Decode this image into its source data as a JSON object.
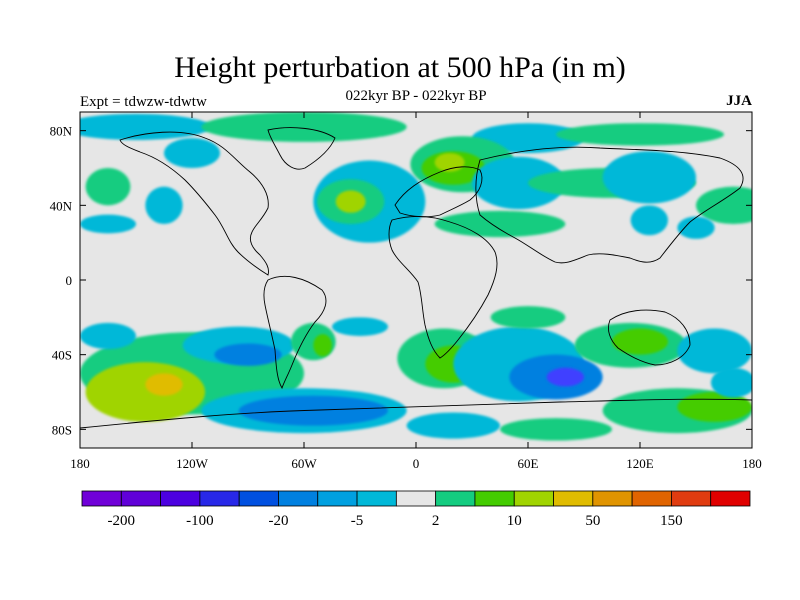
{
  "header": {
    "title": "Height perturbation at 500 hPa (in m)",
    "experiment": "Expt = tdwzw-tdwtw",
    "period": "022kyr BP - 022kyr BP",
    "season": "JJA"
  },
  "map": {
    "lon_range": [
      -180,
      180
    ],
    "lat_range": [
      -90,
      90
    ],
    "lat_ticks": [
      {
        "value": 80,
        "label": "80N"
      },
      {
        "value": 40,
        "label": "40N"
      },
      {
        "value": 0,
        "label": "0"
      },
      {
        "value": -40,
        "label": "40S"
      },
      {
        "value": -80,
        "label": "80S"
      }
    ],
    "lon_ticks": [
      {
        "value": -180,
        "label": "180"
      },
      {
        "value": -120,
        "label": "120W"
      },
      {
        "value": -60,
        "label": "60W"
      },
      {
        "value": 0,
        "label": "0"
      },
      {
        "value": 60,
        "label": "60E"
      },
      {
        "value": 120,
        "label": "120E"
      },
      {
        "value": 180,
        "label": "180"
      }
    ],
    "background_color": "#e6e6e6",
    "contour_blobs": [
      {
        "lon": -150,
        "lat": 82,
        "rx": 40,
        "ry": 7,
        "color": "#00b8d8"
      },
      {
        "lon": -60,
        "lat": 82,
        "rx": 55,
        "ry": 8,
        "color": "#14cc80"
      },
      {
        "lon": 60,
        "lat": 76,
        "rx": 30,
        "ry": 8,
        "color": "#00b8d8"
      },
      {
        "lon": 120,
        "lat": 78,
        "rx": 45,
        "ry": 6,
        "color": "#14cc80"
      },
      {
        "lon": -120,
        "lat": 68,
        "rx": 15,
        "ry": 8,
        "color": "#00b8d8"
      },
      {
        "lon": -25,
        "lat": 42,
        "rx": 30,
        "ry": 22,
        "color": "#00b8d8"
      },
      {
        "lon": -35,
        "lat": 42,
        "rx": 18,
        "ry": 12,
        "color": "#14cc80"
      },
      {
        "lon": -35,
        "lat": 42,
        "rx": 8,
        "ry": 6,
        "color": "#a0d400"
      },
      {
        "lon": 25,
        "lat": 62,
        "rx": 28,
        "ry": 15,
        "color": "#14cc80"
      },
      {
        "lon": 20,
        "lat": 60,
        "rx": 17,
        "ry": 9,
        "color": "#44cc00"
      },
      {
        "lon": 18,
        "lat": 63,
        "rx": 8,
        "ry": 5,
        "color": "#a0d400"
      },
      {
        "lon": 55,
        "lat": 52,
        "rx": 25,
        "ry": 14,
        "color": "#00b8d8"
      },
      {
        "lon": 45,
        "lat": 30,
        "rx": 35,
        "ry": 7,
        "color": "#14cc80"
      },
      {
        "lon": 105,
        "lat": 52,
        "rx": 45,
        "ry": 8,
        "color": "#14cc80"
      },
      {
        "lon": 125,
        "lat": 55,
        "rx": 25,
        "ry": 14,
        "color": "#00b8d8"
      },
      {
        "lon": 170,
        "lat": 40,
        "rx": 20,
        "ry": 10,
        "color": "#14cc80"
      },
      {
        "lon": -165,
        "lat": 50,
        "rx": 12,
        "ry": 10,
        "color": "#14cc80"
      },
      {
        "lon": -135,
        "lat": 40,
        "rx": 10,
        "ry": 10,
        "color": "#00b8d8"
      },
      {
        "lon": -165,
        "lat": 30,
        "rx": 15,
        "ry": 5,
        "color": "#00b8d8"
      },
      {
        "lon": 125,
        "lat": 32,
        "rx": 10,
        "ry": 8,
        "color": "#00b8d8"
      },
      {
        "lon": 150,
        "lat": 28,
        "rx": 10,
        "ry": 6,
        "color": "#00b8d8"
      },
      {
        "lon": -120,
        "lat": -50,
        "rx": 60,
        "ry": 22,
        "color": "#14cc80"
      },
      {
        "lon": -145,
        "lat": -60,
        "rx": 32,
        "ry": 16,
        "color": "#a0d400"
      },
      {
        "lon": -135,
        "lat": -56,
        "rx": 10,
        "ry": 6,
        "color": "#e0bc00"
      },
      {
        "lon": -165,
        "lat": -30,
        "rx": 15,
        "ry": 7,
        "color": "#00b8d8"
      },
      {
        "lon": -95,
        "lat": -35,
        "rx": 30,
        "ry": 10,
        "color": "#00b8d8"
      },
      {
        "lon": -90,
        "lat": -40,
        "rx": 18,
        "ry": 6,
        "color": "#0080e0"
      },
      {
        "lon": -55,
        "lat": -33,
        "rx": 12,
        "ry": 10,
        "color": "#14cc80"
      },
      {
        "lon": -50,
        "lat": -35,
        "rx": 5,
        "ry": 6,
        "color": "#44cc00"
      },
      {
        "lon": -60,
        "lat": -70,
        "rx": 55,
        "ry": 12,
        "color": "#00b8d8"
      },
      {
        "lon": -55,
        "lat": -70,
        "rx": 40,
        "ry": 8,
        "color": "#0080e0"
      },
      {
        "lon": 15,
        "lat": -42,
        "rx": 25,
        "ry": 16,
        "color": "#14cc80"
      },
      {
        "lon": 20,
        "lat": -45,
        "rx": 15,
        "ry": 10,
        "color": "#44cc00"
      },
      {
        "lon": 55,
        "lat": -45,
        "rx": 35,
        "ry": 20,
        "color": "#00b8d8"
      },
      {
        "lon": 75,
        "lat": -52,
        "rx": 25,
        "ry": 12,
        "color": "#0080e0"
      },
      {
        "lon": 80,
        "lat": -52,
        "rx": 10,
        "ry": 5,
        "color": "#4040ff"
      },
      {
        "lon": 115,
        "lat": -35,
        "rx": 30,
        "ry": 12,
        "color": "#14cc80"
      },
      {
        "lon": 120,
        "lat": -33,
        "rx": 15,
        "ry": 7,
        "color": "#44cc00"
      },
      {
        "lon": 140,
        "lat": -70,
        "rx": 40,
        "ry": 12,
        "color": "#14cc80"
      },
      {
        "lon": 160,
        "lat": -68,
        "rx": 20,
        "ry": 8,
        "color": "#44cc00"
      },
      {
        "lon": 160,
        "lat": -38,
        "rx": 20,
        "ry": 12,
        "color": "#00b8d8"
      },
      {
        "lon": 75,
        "lat": -80,
        "rx": 30,
        "ry": 6,
        "color": "#14cc80"
      },
      {
        "lon": 20,
        "lat": -78,
        "rx": 25,
        "ry": 7,
        "color": "#00b8d8"
      },
      {
        "lon": 60,
        "lat": -20,
        "rx": 20,
        "ry": 6,
        "color": "#14cc80"
      },
      {
        "lon": -30,
        "lat": -25,
        "rx": 15,
        "ry": 5,
        "color": "#00b8d8"
      },
      {
        "lon": 170,
        "lat": -55,
        "rx": 12,
        "ry": 8,
        "color": "#00b8d8"
      }
    ]
  },
  "colorbar": {
    "colors": [
      "#7000d8",
      "#6000d8",
      "#4c00e0",
      "#2828e8",
      "#0050e0",
      "#0080e0",
      "#00a0e0",
      "#00b8d8",
      "#e6e6e6",
      "#14cc80",
      "#44cc00",
      "#a0d400",
      "#e0bc00",
      "#e09400",
      "#e06400",
      "#e03c10",
      "#e00000"
    ],
    "labels": [
      {
        "boundary": 1,
        "label": "-200"
      },
      {
        "boundary": 3,
        "label": "-100"
      },
      {
        "boundary": 5,
        "label": "-20"
      },
      {
        "boundary": 7,
        "label": "-5"
      },
      {
        "boundary": 9,
        "label": "2"
      },
      {
        "boundary": 11,
        "label": "10"
      },
      {
        "boundary": 13,
        "label": "50"
      },
      {
        "boundary": 15,
        "label": "150"
      }
    ]
  }
}
